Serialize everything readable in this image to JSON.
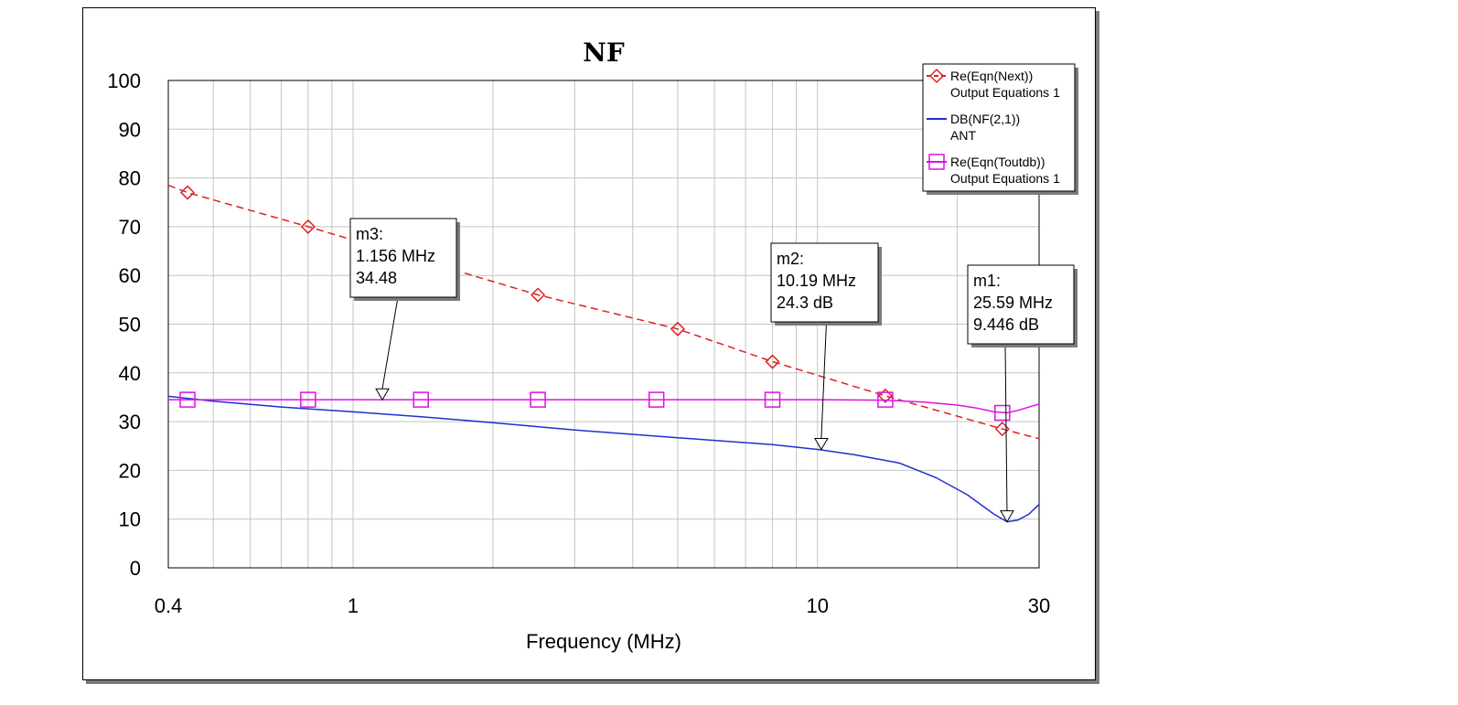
{
  "chart_data": {
    "type": "line",
    "title": "NF",
    "xlabel": "Frequency (MHz)",
    "ylabel": "",
    "x_scale": "log",
    "xlim": [
      0.4,
      30
    ],
    "ylim": [
      0,
      100
    ],
    "x_ticks": [
      0.4,
      1,
      10,
      30
    ],
    "x_tick_labels": [
      "0.4",
      "1",
      "10",
      "30"
    ],
    "y_ticks": [
      0,
      10,
      20,
      30,
      40,
      50,
      60,
      70,
      80,
      90,
      100
    ],
    "y_tick_labels": [
      "0",
      "10",
      "20",
      "30",
      "40",
      "50",
      "60",
      "70",
      "80",
      "90",
      "100"
    ],
    "grid": true,
    "legend_position": "top-right",
    "series": [
      {
        "name": "Re(Eqn(Next))",
        "source": "Output Equations 1",
        "color": "#e02020",
        "line_style": "dashed",
        "marker": "diamond",
        "x": [
          0.4,
          0.44,
          0.8,
          2.5,
          5,
          8,
          14,
          25,
          30
        ],
        "y": [
          78.5,
          77,
          70,
          56,
          49,
          42.3,
          35.3,
          28.5,
          26.5
        ],
        "marker_points": [
          [
            0.44,
            77
          ],
          [
            0.8,
            70
          ],
          [
            2.5,
            56
          ],
          [
            5,
            49
          ],
          [
            8,
            42.3
          ],
          [
            14,
            35.3
          ],
          [
            25,
            28.5
          ]
        ]
      },
      {
        "name": "DB(NF(2,1))",
        "source": "ANT",
        "color": "#1f2fd1",
        "line_style": "solid",
        "marker": "none",
        "x": [
          0.4,
          0.5,
          0.7,
          1.0,
          1.4,
          2.0,
          3.0,
          5.0,
          8.0,
          10.0,
          12.0,
          15.0,
          18.0,
          21.0,
          24.0,
          25.6,
          27.0,
          28.5,
          30.0
        ],
        "y": [
          35.2,
          34.2,
          33.0,
          32.0,
          31.0,
          29.8,
          28.3,
          26.7,
          25.3,
          24.3,
          23.2,
          21.5,
          18.5,
          15.0,
          11.0,
          9.45,
          9.8,
          11.0,
          13.0
        ]
      },
      {
        "name": "Re(Eqn(Toutdb))",
        "source": "Output Equations 1",
        "color": "#e010e0",
        "line_style": "solid",
        "marker": "square",
        "x": [
          0.4,
          1,
          5,
          10,
          14,
          17,
          20,
          22,
          24,
          25.6,
          27,
          30
        ],
        "y": [
          34.5,
          34.5,
          34.5,
          34.5,
          34.4,
          34.0,
          33.4,
          32.8,
          32.0,
          31.8,
          32.3,
          33.6
        ],
        "marker_points": [
          [
            0.44,
            34.5
          ],
          [
            0.8,
            34.5
          ],
          [
            1.4,
            34.5
          ],
          [
            2.5,
            34.5
          ],
          [
            4.5,
            34.5
          ],
          [
            8.0,
            34.5
          ],
          [
            14.0,
            34.5
          ],
          [
            25.0,
            31.8
          ]
        ]
      }
    ],
    "markers": [
      {
        "id": "m3",
        "label": "m3:",
        "freq": "1.156 MHz",
        "value": "34.48",
        "x": 1.156,
        "y": 34.48
      },
      {
        "id": "m2",
        "label": "m2:",
        "freq": "10.19 MHz",
        "value": "24.3 dB",
        "x": 10.19,
        "y": 24.3
      },
      {
        "id": "m1",
        "label": "m1:",
        "freq": "25.59 MHz",
        "value": "9.446 dB",
        "x": 25.59,
        "y": 9.446
      }
    ]
  }
}
